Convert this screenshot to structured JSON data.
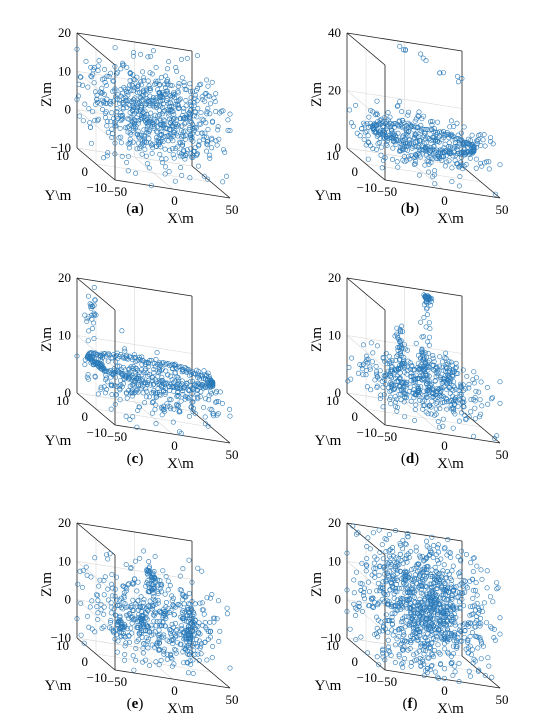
{
  "colors": {
    "points": "#2a7ab9",
    "axes": "#222222",
    "grid": "#d9d9d9"
  },
  "chart_data": [
    {
      "panel": "(a)",
      "type": "scatter",
      "xlabel": "X\\m",
      "ylabel": "Y\\m",
      "zlabel": "Z\\m",
      "xticks": [
        "−50",
        "0",
        "50"
      ],
      "yticks": [
        "10",
        "0",
        "−10"
      ],
      "zticks": [
        "20",
        "10",
        "0",
        "−10"
      ],
      "xlim": [
        -50,
        50
      ],
      "ylim": [
        -10,
        10
      ],
      "zlim": [
        -10,
        20
      ],
      "grid": true,
      "clusters": [
        {
          "x": 0,
          "y": 0,
          "z": 5,
          "sx": 30,
          "sy": 7,
          "sz": 6,
          "n": 700
        }
      ]
    },
    {
      "panel": "(b)",
      "type": "scatter",
      "xlabel": "X\\m",
      "ylabel": "Y\\m",
      "zlabel": "Z\\m",
      "xticks": [
        "−50",
        "0",
        "50"
      ],
      "yticks": [
        "10",
        "0",
        "−10"
      ],
      "zticks": [
        "40",
        "20",
        "0"
      ],
      "xlim": [
        -50,
        50
      ],
      "ylim": [
        -10,
        10
      ],
      "zlim": [
        0,
        40
      ],
      "grid": true,
      "clusters": [
        {
          "x": 0,
          "y": 0,
          "z": 10,
          "sx": 28,
          "sy": 6,
          "sz": 4,
          "n": 350
        },
        {
          "x": -10,
          "y": 5,
          "z": 42,
          "sx": 1,
          "sy": 1,
          "sz": 1,
          "n": 4
        },
        {
          "x": 5,
          "y": 4,
          "z": 38,
          "sx": 1,
          "sy": 1,
          "sz": 1,
          "n": 3
        },
        {
          "x": 20,
          "y": 3,
          "z": 34,
          "sx": 1,
          "sy": 1,
          "sz": 1,
          "n": 3
        },
        {
          "x": 35,
          "y": 2,
          "z": 33,
          "sx": 1,
          "sy": 1,
          "sz": 1,
          "n": 3
        }
      ],
      "loops": [
        {
          "x": 0,
          "y": 0,
          "z": 12,
          "rx": 42,
          "ry": 8,
          "n": 160
        }
      ]
    },
    {
      "panel": "(c)",
      "type": "scatter",
      "xlabel": "X\\m",
      "ylabel": "Y\\m",
      "zlabel": "Z\\m",
      "xticks": [
        "−50",
        "0",
        "50"
      ],
      "yticks": [
        "10",
        "0",
        "−10"
      ],
      "zticks": [
        "20",
        "10",
        "0"
      ],
      "xlim": [
        -50,
        50
      ],
      "ylim": [
        -10,
        10
      ],
      "zlim": [
        -5,
        20
      ],
      "grid": true,
      "clusters": [
        {
          "x": 0,
          "y": 0,
          "z": 2,
          "sx": 28,
          "sy": 6,
          "sz": 3,
          "n": 320
        },
        {
          "x": -40,
          "y": 8,
          "z": 14,
          "sx": 3,
          "sy": 1,
          "sz": 2,
          "n": 25
        }
      ],
      "loops": [
        {
          "x": -5,
          "y": 0,
          "z": 5,
          "rx": 55,
          "ry": 8,
          "n": 260
        }
      ]
    },
    {
      "panel": "(d)",
      "type": "scatter",
      "xlabel": "X\\m",
      "ylabel": "Y\\m",
      "zlabel": "Z\\m",
      "xticks": [
        "−50",
        "0",
        "50"
      ],
      "yticks": [
        "10",
        "0",
        "−10"
      ],
      "zticks": [
        "20",
        "10",
        "0"
      ],
      "xlim": [
        -50,
        50
      ],
      "ylim": [
        -10,
        10
      ],
      "zlim": [
        -5,
        20
      ],
      "grid": true,
      "clusters": [
        {
          "x": 0,
          "y": 0,
          "z": 2,
          "sx": 25,
          "sy": 6,
          "sz": 3,
          "n": 420
        },
        {
          "x": 12,
          "y": 5,
          "z": 20,
          "sx": 1.2,
          "sy": 0.6,
          "sz": 1.2,
          "n": 40
        },
        {
          "x": 5,
          "y": 2,
          "z": 7,
          "sx": 3,
          "sy": 1,
          "sz": 4,
          "n": 60
        },
        {
          "x": -15,
          "y": 3,
          "z": 8,
          "sx": 1.5,
          "sy": 1,
          "sz": 3,
          "n": 40
        },
        {
          "x": 25,
          "y": 2,
          "z": 5,
          "sx": 2,
          "sy": 1,
          "sz": 1.5,
          "n": 30
        }
      ]
    },
    {
      "panel": "(e)",
      "type": "scatter",
      "xlabel": "X\\m",
      "ylabel": "Y\\m",
      "zlabel": "Z\\m",
      "xticks": [
        "−50",
        "0",
        "50"
      ],
      "yticks": [
        "10",
        "0",
        "−10"
      ],
      "zticks": [
        "20",
        "10",
        "0",
        "−10"
      ],
      "xlim": [
        -50,
        50
      ],
      "ylim": [
        -10,
        10
      ],
      "zlim": [
        -10,
        20
      ],
      "grid": true,
      "clusters": [
        {
          "x": 0,
          "y": 0,
          "z": 2,
          "sx": 28,
          "sy": 6,
          "sz": 6,
          "n": 450
        },
        {
          "x": 35,
          "y": 3,
          "z": -2,
          "sx": 2,
          "sy": 1,
          "sz": 4,
          "n": 70
        },
        {
          "x": 5,
          "y": 4,
          "z": 10,
          "sx": 2,
          "sy": 1,
          "sz": 2,
          "n": 40
        },
        {
          "x": -30,
          "y": 0,
          "z": -2,
          "sx": 2,
          "sy": 1,
          "sz": 2,
          "n": 30
        },
        {
          "x": -10,
          "y": 0,
          "z": 0,
          "sx": 2,
          "sy": 1,
          "sz": 2,
          "n": 30
        }
      ]
    },
    {
      "panel": "(f)",
      "type": "scatter",
      "xlabel": "X\\m",
      "ylabel": "Y\\m",
      "zlabel": "Z\\m",
      "xticks": [
        "−50",
        "0",
        "50"
      ],
      "yticks": [
        "10",
        "0",
        "−10"
      ],
      "zticks": [
        "20",
        "10",
        "0",
        "−10"
      ],
      "xlim": [
        -50,
        50
      ],
      "ylim": [
        -10,
        10
      ],
      "zlim": [
        -10,
        20
      ],
      "grid": true,
      "clusters": [
        {
          "x": 0,
          "y": 0,
          "z": 5,
          "sx": 26,
          "sy": 7,
          "sz": 8,
          "n": 1000
        }
      ]
    }
  ]
}
